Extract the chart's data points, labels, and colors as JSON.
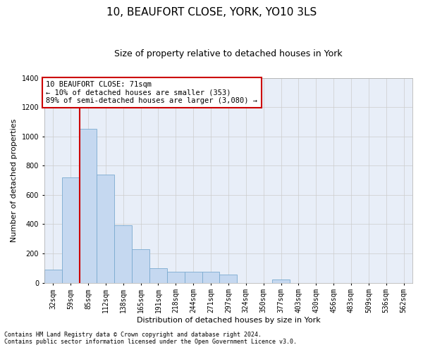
{
  "title": "10, BEAUFORT CLOSE, YORK, YO10 3LS",
  "subtitle": "Size of property relative to detached houses in York",
  "xlabel": "Distribution of detached houses by size in York",
  "ylabel": "Number of detached properties",
  "footnote1": "Contains HM Land Registry data © Crown copyright and database right 2024.",
  "footnote2": "Contains public sector information licensed under the Open Government Licence v3.0.",
  "annotation_line1": "10 BEAUFORT CLOSE: 71sqm",
  "annotation_line2": "← 10% of detached houses are smaller (353)",
  "annotation_line3": "89% of semi-detached houses are larger (3,080) →",
  "bar_categories": [
    "32sqm",
    "59sqm",
    "85sqm",
    "112sqm",
    "138sqm",
    "165sqm",
    "191sqm",
    "218sqm",
    "244sqm",
    "271sqm",
    "297sqm",
    "324sqm",
    "350sqm",
    "377sqm",
    "403sqm",
    "430sqm",
    "456sqm",
    "483sqm",
    "509sqm",
    "536sqm",
    "562sqm"
  ],
  "bar_values": [
    90,
    720,
    1050,
    740,
    390,
    230,
    100,
    75,
    75,
    75,
    55,
    0,
    0,
    20,
    0,
    0,
    0,
    0,
    0,
    0,
    0
  ],
  "bar_color": "#c5d8f0",
  "bar_edge_color": "#7aaad0",
  "vline_color": "#cc0000",
  "vline_x": 1.5,
  "ylim": [
    0,
    1400
  ],
  "yticks": [
    0,
    200,
    400,
    600,
    800,
    1000,
    1200,
    1400
  ],
  "grid_color": "#cccccc",
  "bg_color": "#e8eef8",
  "annotation_box_color": "#cc0000",
  "title_fontsize": 11,
  "subtitle_fontsize": 9,
  "axis_label_fontsize": 8,
  "tick_fontsize": 7,
  "annotation_fontsize": 7.5,
  "footnote_fontsize": 6
}
